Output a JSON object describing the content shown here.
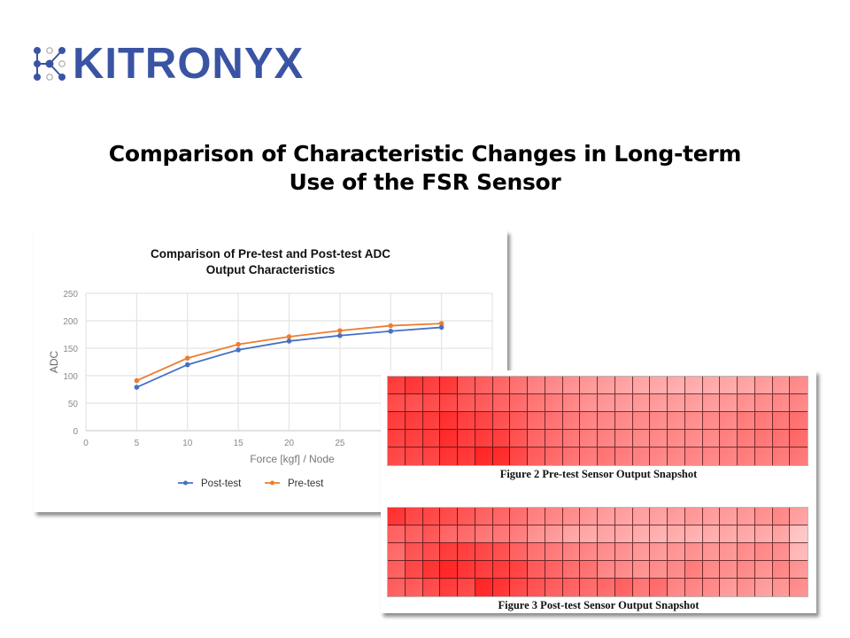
{
  "logo": {
    "text": "KITRONYX",
    "color": "#3a54a4",
    "icon": "node-network-icon"
  },
  "slide": {
    "title_line1": "Comparison of Characteristic Changes in Long-term",
    "title_line2": "Use of the FSR Sensor"
  },
  "chart_data": {
    "type": "line",
    "title_line1": "Comparison of Pre-test and Post-test ADC",
    "title_line2": "Output Characteristics",
    "xlabel": "Force [kgf] / Node",
    "ylabel": "ADC",
    "xlim": [
      0,
      40
    ],
    "ylim": [
      0,
      250
    ],
    "x_ticks": [
      0,
      5,
      10,
      15,
      20,
      25
    ],
    "y_ticks": [
      0,
      50,
      100,
      150,
      200,
      250
    ],
    "grid": true,
    "legend_position": "bottom",
    "x": [
      5,
      10,
      15,
      20,
      25,
      30,
      35
    ],
    "series": [
      {
        "name": "Post-test",
        "color": "#4472c4",
        "values": [
          79,
          120,
          147,
          163,
          173,
          181,
          188
        ]
      },
      {
        "name": "Pre-test",
        "color": "#ed7d31",
        "values": [
          91,
          132,
          157,
          171,
          182,
          191,
          195
        ]
      }
    ]
  },
  "heatmaps": [
    {
      "caption": "Figure 2 Pre-test Sensor Output Snapshot",
      "rows": 5,
      "cols": 24,
      "intensity": [
        [
          0.85,
          0.88,
          0.84,
          0.88,
          0.72,
          0.68,
          0.64,
          0.58,
          0.5,
          0.46,
          0.42,
          0.38,
          0.36,
          0.33,
          0.31,
          0.3,
          0.28,
          0.28,
          0.29,
          0.3,
          0.32,
          0.36,
          0.4,
          0.45
        ],
        [
          0.78,
          0.76,
          0.78,
          0.8,
          0.72,
          0.7,
          0.66,
          0.62,
          0.56,
          0.52,
          0.48,
          0.42,
          0.4,
          0.38,
          0.38,
          0.37,
          0.36,
          0.36,
          0.37,
          0.38,
          0.42,
          0.44,
          0.46,
          0.48
        ],
        [
          0.86,
          0.86,
          0.86,
          0.92,
          0.84,
          0.82,
          0.76,
          0.7,
          0.62,
          0.58,
          0.54,
          0.5,
          0.48,
          0.46,
          0.46,
          0.45,
          0.44,
          0.44,
          0.46,
          0.48,
          0.52,
          0.54,
          0.56,
          0.58
        ],
        [
          0.84,
          0.84,
          0.86,
          0.94,
          0.86,
          0.86,
          0.84,
          0.74,
          0.64,
          0.6,
          0.56,
          0.52,
          0.5,
          0.48,
          0.46,
          0.46,
          0.46,
          0.45,
          0.46,
          0.5,
          0.54,
          0.56,
          0.58,
          0.62
        ],
        [
          0.8,
          0.8,
          0.82,
          0.9,
          0.88,
          0.96,
          0.94,
          0.8,
          0.68,
          0.62,
          0.58,
          0.54,
          0.56,
          0.52,
          0.5,
          0.48,
          0.48,
          0.48,
          0.48,
          0.5,
          0.52,
          0.52,
          0.54,
          0.56
        ]
      ]
    },
    {
      "caption": "Figure 3 Post-test Sensor Output Snapshot",
      "rows": 5,
      "cols": 24,
      "intensity": [
        [
          0.9,
          0.8,
          0.8,
          0.78,
          0.72,
          0.66,
          0.64,
          0.6,
          0.5,
          0.48,
          0.44,
          0.4,
          0.36,
          0.34,
          0.34,
          0.34,
          0.36,
          0.38,
          0.36,
          0.36,
          0.38,
          0.42,
          0.46,
          0.34
        ],
        [
          0.66,
          0.68,
          0.72,
          0.64,
          0.62,
          0.56,
          0.56,
          0.52,
          0.42,
          0.38,
          0.32,
          0.3,
          0.32,
          0.3,
          0.28,
          0.26,
          0.28,
          0.26,
          0.28,
          0.3,
          0.3,
          0.3,
          0.32,
          0.16
        ],
        [
          0.62,
          0.74,
          0.78,
          0.86,
          0.84,
          0.8,
          0.76,
          0.66,
          0.58,
          0.54,
          0.5,
          0.48,
          0.44,
          0.42,
          0.38,
          0.38,
          0.4,
          0.42,
          0.4,
          0.4,
          0.44,
          0.46,
          0.44,
          0.22
        ],
        [
          0.68,
          0.8,
          0.9,
          0.98,
          0.9,
          0.86,
          0.86,
          0.82,
          0.7,
          0.66,
          0.6,
          0.58,
          0.48,
          0.46,
          0.42,
          0.44,
          0.46,
          0.52,
          0.46,
          0.44,
          0.46,
          0.42,
          0.48,
          0.4
        ],
        [
          0.68,
          0.7,
          0.78,
          0.86,
          0.8,
          0.96,
          0.9,
          0.8,
          0.74,
          0.68,
          0.66,
          0.62,
          0.62,
          0.66,
          0.56,
          0.6,
          0.48,
          0.48,
          0.46,
          0.38,
          0.42,
          0.36,
          0.4,
          0.44
        ]
      ]
    }
  ]
}
